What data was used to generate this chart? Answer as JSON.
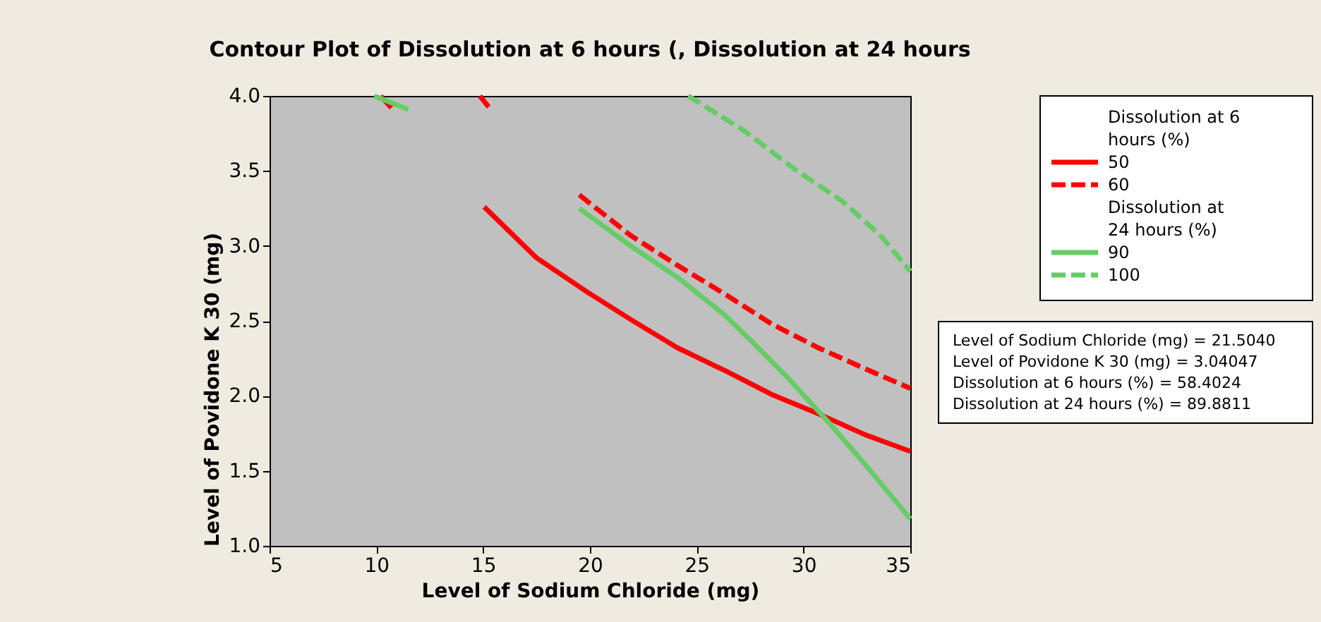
{
  "chart_data": {
    "type": "line",
    "title": "Contour Plot of Dissolution at 6 hours (, Dissolution at 24 hours",
    "xlabel": "Level of Sodium Chloride (mg)",
    "ylabel": "Level of Povidone K 30 (mg)",
    "xlim": [
      5,
      35
    ],
    "xticks": [
      5,
      10,
      15,
      20,
      25,
      30,
      35
    ],
    "ylim": [
      1.0,
      4.0
    ],
    "yticks": [
      {
        "value": 1.0,
        "label": "1.0"
      },
      {
        "value": 1.5,
        "label": "1.5"
      },
      {
        "value": 2.0,
        "label": "2.0"
      },
      {
        "value": 2.5,
        "label": "2.5"
      },
      {
        "value": 3.0,
        "label": "3.0"
      },
      {
        "value": 3.5,
        "label": "3.5"
      },
      {
        "value": 4.0,
        "label": "4.0"
      }
    ],
    "grid": false,
    "legend": "top right",
    "legend_title": [
      "Dissolution at 6 hours (%)",
      "Dissolution at 24 hours (%)"
    ],
    "series": [
      {
        "name": "50",
        "color": "#ff0000",
        "line_style": "solid",
        "x": [
          10.2,
          10.7,
          13,
          15.05,
          17.5,
          19.9,
          21.9,
          24.1,
          26.3,
          28.5,
          30.7,
          32.9,
          35
        ],
        "values": [
          4.0,
          3.92,
          null,
          3.26,
          2.92,
          2.69,
          2.51,
          2.32,
          2.17,
          2.01,
          1.88,
          1.74,
          1.63
        ]
      },
      {
        "name": "60",
        "color": "#ff0000",
        "line_style": "dashed",
        "x": [
          14.85,
          15.4,
          17.5,
          19.5,
          21.9,
          24.1,
          26.3,
          28.5,
          30.7,
          32.9,
          35
        ],
        "values": [
          4.0,
          3.9,
          null,
          3.34,
          3.07,
          2.87,
          2.68,
          2.48,
          2.32,
          2.18,
          2.05
        ]
      },
      {
        "name": "90",
        "color": "#66cc66",
        "line_style": "solid",
        "x": [
          9.9,
          11.5,
          15,
          19.5,
          21.9,
          24.1,
          26.3,
          27.6,
          29.2,
          31.2,
          32.9,
          35
        ],
        "values": [
          4.0,
          3.91,
          null,
          3.25,
          3.0,
          2.79,
          2.54,
          2.36,
          2.13,
          1.82,
          1.54,
          1.18
        ]
      },
      {
        "name": "100",
        "color": "#66cc66",
        "line_style": "dashed",
        "x": [
          24.6,
          27.2,
          29.6,
          31.8,
          33.6,
          35
        ],
        "values": [
          4.0,
          3.77,
          3.51,
          3.3,
          3.07,
          2.83
        ]
      }
    ],
    "annotations": [
      "Level of Sodium Chloride (mg) = 21.5040",
      "Level of Povidone K 30 (mg) = 3.04047",
      "Dissolution at 6 hours (%) = 58.4024",
      "Dissolution at 24 hours (%) = 89.8811"
    ]
  }
}
